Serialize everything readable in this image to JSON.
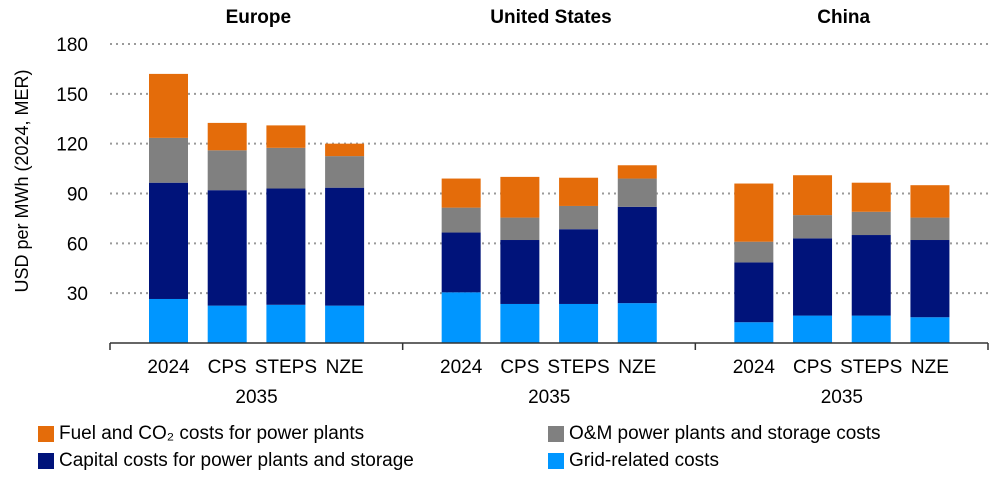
{
  "chart_data": {
    "type": "bar",
    "stacked": true,
    "ylabel": "USD per MWh (2024, MER)",
    "ylim": [
      0,
      180
    ],
    "yticks": [
      30,
      60,
      90,
      120,
      150,
      180
    ],
    "grid": true,
    "legend_position": "bottom",
    "categories": [
      "2024",
      "CPS",
      "STEPS",
      "NZE"
    ],
    "category_group_label": "2035",
    "panels": [
      {
        "title": "Europe",
        "series": [
          {
            "name": "Grid-related costs",
            "key": "grid",
            "values": [
              26.5,
              22.5,
              23,
              22.5
            ]
          },
          {
            "name": "Capital costs for power plants and storage",
            "key": "capital",
            "values": [
              70,
              69.5,
              70,
              71
            ]
          },
          {
            "name": "O&M power plants and storage costs",
            "key": "om",
            "values": [
              27,
              24,
              24.5,
              19
            ]
          },
          {
            "name": "Fuel and CO₂ costs for power plants",
            "key": "fuel",
            "values": [
              38.5,
              16.5,
              13.5,
              7.5
            ]
          }
        ]
      },
      {
        "title": "United States",
        "series": [
          {
            "name": "Grid-related costs",
            "key": "grid",
            "values": [
              30.5,
              23.5,
              23.5,
              24
            ]
          },
          {
            "name": "Capital costs for power plants and storage",
            "key": "capital",
            "values": [
              36,
              38.5,
              45,
              58
            ]
          },
          {
            "name": "O&M power plants and storage costs",
            "key": "om",
            "values": [
              15,
              13.5,
              14,
              17
            ]
          },
          {
            "name": "Fuel and CO₂ costs for power plants",
            "key": "fuel",
            "values": [
              17.5,
              24.5,
              17,
              8
            ]
          }
        ]
      },
      {
        "title": "China",
        "series": [
          {
            "name": "Grid-related costs",
            "key": "grid",
            "values": [
              12.5,
              16.5,
              16.5,
              15.5
            ]
          },
          {
            "name": "Capital costs for power plants and storage",
            "key": "capital",
            "values": [
              36,
              46.5,
              48.5,
              46.5
            ]
          },
          {
            "name": "O&M power plants and storage costs",
            "key": "om",
            "values": [
              12.5,
              14,
              14,
              13.5
            ]
          },
          {
            "name": "Fuel and CO₂ costs for power plants",
            "key": "fuel",
            "values": [
              35,
              24,
              17.5,
              19.5
            ]
          }
        ]
      }
    ],
    "colors": {
      "fuel": "#E46C0A",
      "om": "#808080",
      "capital": "#00137A",
      "grid": "#0096FF"
    }
  },
  "legend": {
    "left": [
      {
        "key": "fuel",
        "label": "Fuel and CO₂ costs for power plants"
      },
      {
        "key": "capital",
        "label": "Capital costs for power plants and storage"
      }
    ],
    "right": [
      {
        "key": "om",
        "label": "O&M power plants and storage costs"
      },
      {
        "key": "grid",
        "label": "Grid-related costs"
      }
    ]
  }
}
